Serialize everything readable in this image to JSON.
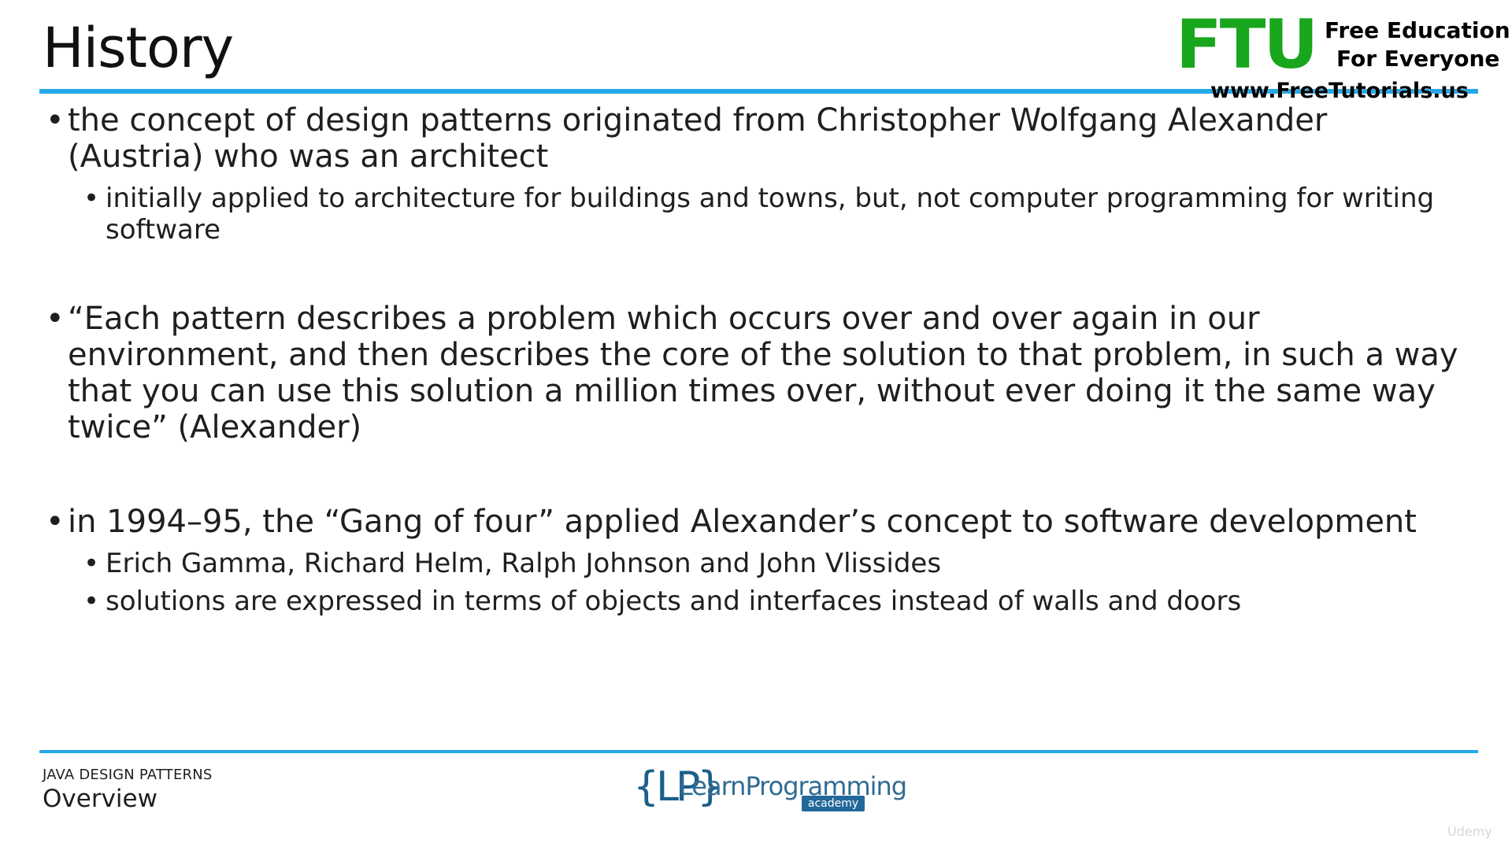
{
  "slide": {
    "title": "History",
    "top_logo": {
      "mark": "FTU",
      "line1": "Free Education",
      "line2": "For Everyone",
      "url": "www.FreeTutorials.us"
    },
    "bullets": [
      {
        "text": "the concept of design patterns originated from Christopher Wolfgang Alexander (Austria) who was an architect",
        "subbullets": [
          "initially applied to architecture for buildings and towns, but, not computer programming for writing software"
        ]
      },
      {
        "text": "“Each pattern describes a problem which occurs over and over again in our environment, and then describes the core of the solution to that problem, in such a way that you can use this solution a million times over, without ever doing it the same way twice” (Alexander)",
        "subbullets": []
      },
      {
        "text": "in 1994–95, the “Gang of four” applied Alexander’s concept to software development",
        "subbullets": [
          "Erich Gamma, Richard Helm, Ralph Johnson and John Vlissides",
          "solutions are expressed in terms of objects and interfaces instead of walls and doors"
        ]
      }
    ],
    "footer": {
      "small": "JAVA DESIGN PATTERNS",
      "big": "Overview"
    },
    "brand": {
      "mark": "{LP}",
      "text": "LearnProgramming",
      "sub": "academy"
    },
    "watermark": "Udemy"
  }
}
